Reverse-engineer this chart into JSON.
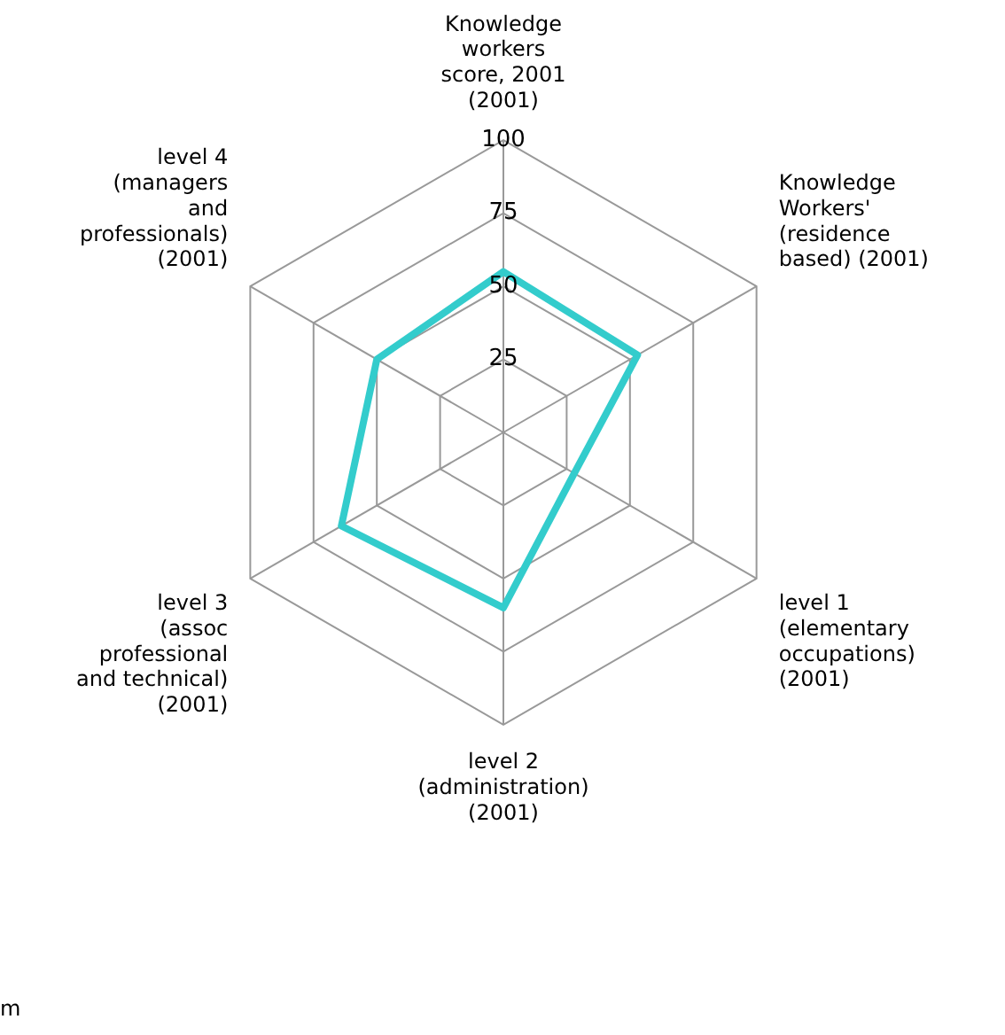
{
  "chart_data": {
    "type": "radar",
    "categories": [
      "Knowledge\nworkers\nscore, 2001\n(2001)",
      "Knowledge\nWorkers'\n(residence\nbased) (2001)",
      "level 1\n(elementary\noccupations)\n(2001)",
      "level 2\n(administration)\n(2001)",
      "level 3\n(assoc\nprofessional\nand technical)\n(2001)",
      "level 4\n(managers\nand\nprofessionals)\n(2001)"
    ],
    "series": [
      {
        "color": "#33cccc",
        "values": [
          55,
          53,
          28,
          60,
          64,
          50
        ]
      }
    ],
    "ylim": [
      0,
      100
    ],
    "yticks": [
      25,
      50,
      75,
      100
    ],
    "grid": true,
    "legend": false,
    "marker": "none",
    "annotations": [
      "m"
    ]
  }
}
